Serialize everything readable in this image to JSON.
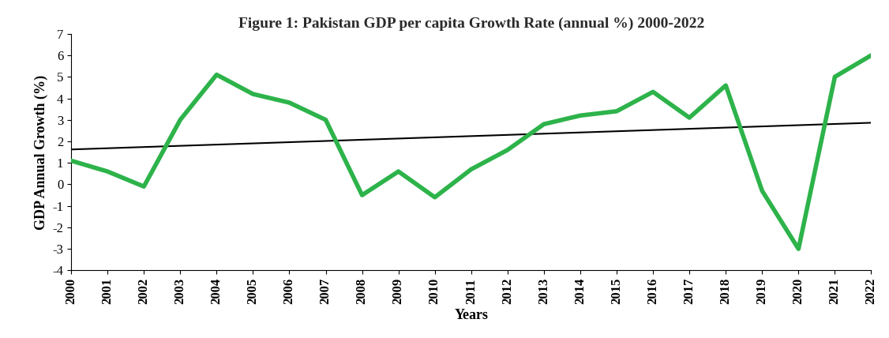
{
  "chart_data": {
    "type": "line",
    "title": "Figure 1: Pakistan GDP per capita Growth Rate (annual %) 2000-2022",
    "x_label": "Years",
    "y_label": "GDP Annual Growth (%)",
    "x": [
      2000,
      2001,
      2002,
      2003,
      2004,
      2005,
      2006,
      2007,
      2008,
      2009,
      2010,
      2011,
      2012,
      2013,
      2014,
      2015,
      2016,
      2017,
      2018,
      2019,
      2020,
      2021,
      2022
    ],
    "values": [
      1.1,
      0.6,
      -0.1,
      3.0,
      5.1,
      4.2,
      3.8,
      3.0,
      -0.5,
      0.6,
      -0.6,
      0.7,
      1.6,
      2.8,
      3.2,
      3.4,
      4.3,
      3.1,
      4.6,
      -0.3,
      -3.0,
      5.0,
      6.0
    ],
    "color": "#2db34a",
    "xlim": [
      2000,
      2022
    ],
    "xticks": [
      2000,
      2001,
      2002,
      2003,
      2004,
      2005,
      2006,
      2007,
      2008,
      2009,
      2010,
      2011,
      2012,
      2013,
      2014,
      2015,
      2016,
      2017,
      2018,
      2019,
      2020,
      2021,
      2022
    ],
    "ylim": [
      -4,
      7
    ],
    "yticks": [
      -4,
      -3,
      -2,
      -1,
      0,
      1,
      2,
      3,
      4,
      5,
      6,
      7
    ],
    "grid": false
  }
}
